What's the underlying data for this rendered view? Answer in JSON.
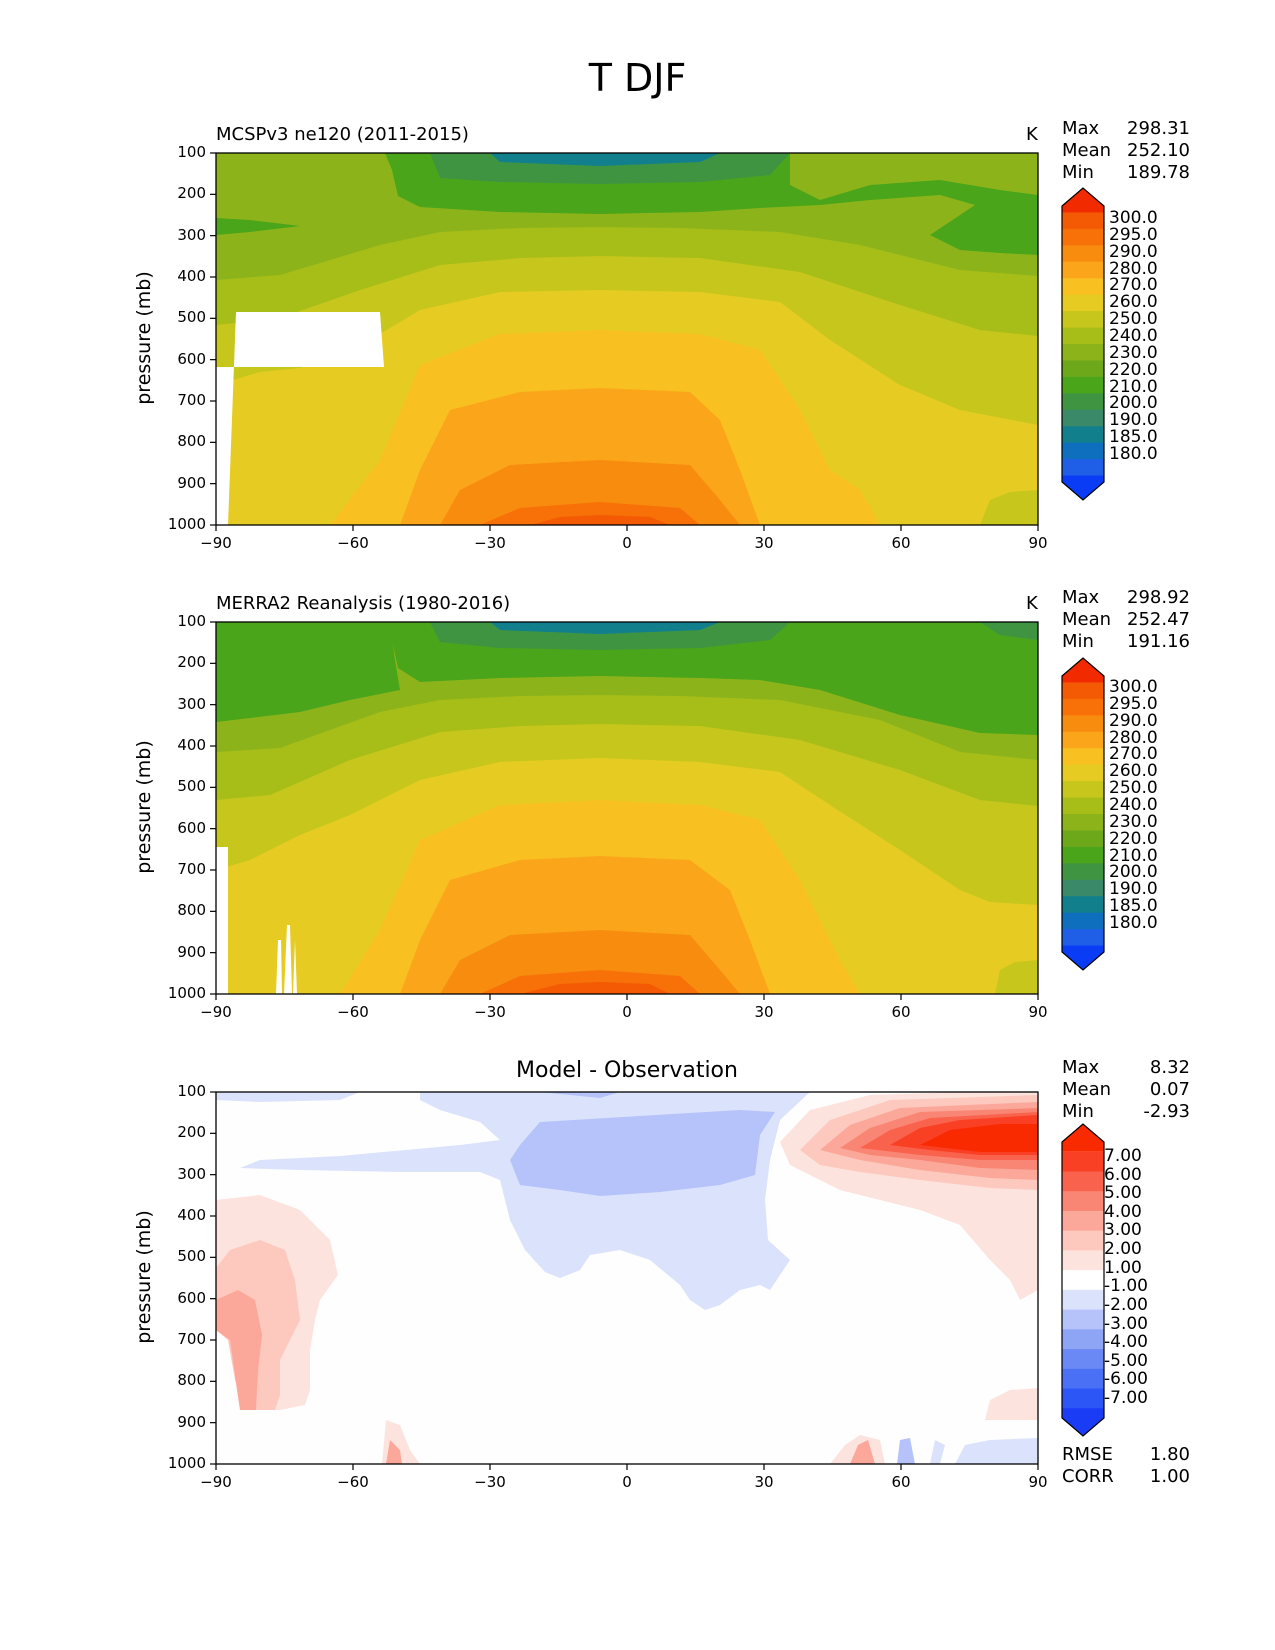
{
  "figure": {
    "suptitle": "T DJF"
  },
  "chart_data": [
    {
      "type": "contour",
      "title": "MCSPv3 ne120 (2011-2015)",
      "units": "K",
      "ylabel": "pressure (mb)",
      "xlabel": "",
      "x_ticks": [
        "−90",
        "−60",
        "−30",
        "0",
        "30",
        "60",
        "90"
      ],
      "y_ticks": [
        "100",
        "200",
        "300",
        "400",
        "500",
        "600",
        "700",
        "800",
        "900",
        "1000"
      ],
      "xlim": [
        -90,
        90
      ],
      "ylim": [
        1000,
        100
      ],
      "stats": [
        {
          "label": "Max",
          "value": "298.31"
        },
        {
          "label": "Mean",
          "value": "252.10"
        },
        {
          "label": "Min",
          "value": "189.78"
        }
      ],
      "colorbar_levels": [
        "300.0",
        "295.0",
        "290.0",
        "280.0",
        "270.0",
        "260.0",
        "250.0",
        "240.0",
        "230.0",
        "220.0",
        "210.0",
        "200.0",
        "190.0",
        "185.0",
        "180.0"
      ]
    },
    {
      "type": "contour",
      "title": "MERRA2 Reanalysis (1980-2016)",
      "units": "K",
      "ylabel": "pressure (mb)",
      "xlabel": "",
      "x_ticks": [
        "−90",
        "−60",
        "−30",
        "0",
        "30",
        "60",
        "90"
      ],
      "y_ticks": [
        "100",
        "200",
        "300",
        "400",
        "500",
        "600",
        "700",
        "800",
        "900",
        "1000"
      ],
      "xlim": [
        -90,
        90
      ],
      "ylim": [
        1000,
        100
      ],
      "stats": [
        {
          "label": "Max",
          "value": "298.92"
        },
        {
          "label": "Mean",
          "value": "252.47"
        },
        {
          "label": "Min",
          "value": "191.16"
        }
      ],
      "colorbar_levels": [
        "300.0",
        "295.0",
        "290.0",
        "280.0",
        "270.0",
        "260.0",
        "250.0",
        "240.0",
        "230.0",
        "220.0",
        "210.0",
        "200.0",
        "190.0",
        "185.0",
        "180.0"
      ]
    },
    {
      "type": "contour",
      "title": "Model - Observation",
      "units": "",
      "ylabel": "pressure (mb)",
      "xlabel": "",
      "x_ticks": [
        "−90",
        "−60",
        "−30",
        "0",
        "30",
        "60",
        "90"
      ],
      "y_ticks": [
        "100",
        "200",
        "300",
        "400",
        "500",
        "600",
        "700",
        "800",
        "900",
        "1000"
      ],
      "xlim": [
        -90,
        90
      ],
      "ylim": [
        1000,
        100
      ],
      "stats": [
        {
          "label": "Max",
          "value": "8.32"
        },
        {
          "label": "Mean",
          "value": "0.07"
        },
        {
          "label": "Min",
          "value": "-2.93"
        }
      ],
      "colorbar_levels": [
        "7.00",
        "6.00",
        "5.00",
        "4.00",
        "3.00",
        "2.00",
        "1.00",
        "-1.00",
        "-2.00",
        "-3.00",
        "-4.00",
        "-5.00",
        "-6.00",
        "-7.00"
      ],
      "extra_stats": [
        {
          "label": "RMSE",
          "value": "1.80"
        },
        {
          "label": "CORR",
          "value": "1.00"
        }
      ]
    }
  ],
  "colors": {
    "temp_scale": [
      "#0a3cf5",
      "#1f5fe8",
      "#0f6fbf",
      "#11808c",
      "#3a8a6a",
      "#3f9442",
      "#4aa51a",
      "#6ca81a",
      "#8cb41a",
      "#a7bd18",
      "#c6c61c",
      "#e6cc22",
      "#f8c020",
      "#fba61a",
      "#f88c0e",
      "#f77008",
      "#f45a04",
      "#f22a00"
    ],
    "diff_scale": [
      "#1a3cf5",
      "#2d56f7",
      "#4a70f6",
      "#6b89f5",
      "#8ea5f6",
      "#b5c3fa",
      "#dbe2fb",
      "#ffffff",
      "#fde3de",
      "#fdc8bd",
      "#fba89a",
      "#f98674",
      "#f9634d",
      "#f93f24",
      "#fa2a00"
    ]
  }
}
